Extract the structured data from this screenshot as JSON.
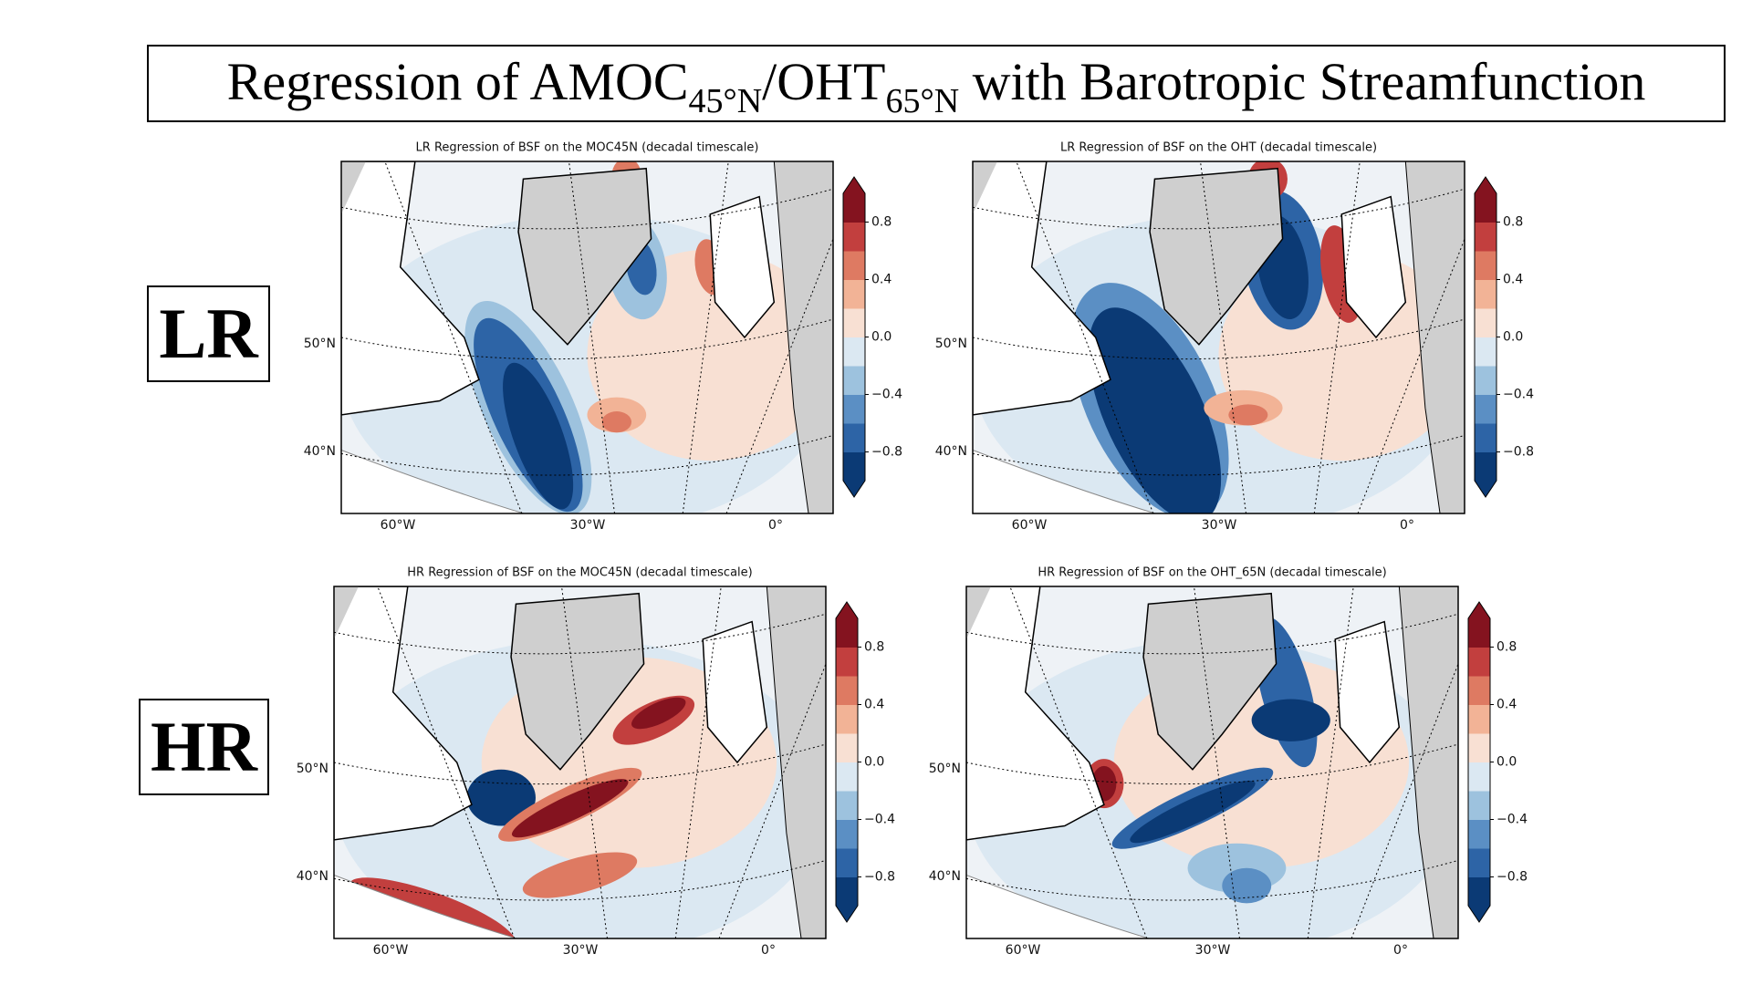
{
  "title": {
    "part_1": "Regression of AMOC",
    "sub_1": "45°N",
    "part_2": "/OHT",
    "sub_2": "65°N",
    "part_3": " with Barotropic Streamfunction"
  },
  "row_labels": [
    "LR",
    "HR"
  ],
  "panels": [
    {
      "title": "LR Regression of BSF on the MOC45N (decadal timescale)",
      "lat_labels": [
        "50°N",
        "40°N"
      ],
      "lon_labels": [
        "60°W",
        "30°W",
        "0°"
      ],
      "colorbar": {
        "clim": [
          -1,
          1
        ],
        "ticks": [
          0.8,
          0.4,
          {
            "value": 0,
            "label": "0.0"
          },
          {
            "value": -0.4,
            "label": "−0.4"
          },
          {
            "value": -0.8,
            "label": "−0.8"
          }
        ]
      }
    },
    {
      "title": "LR Regression of BSF on the OHT (decadal timescale)",
      "lat_labels": [
        "50°N",
        "40°N"
      ],
      "lon_labels": [
        "60°W",
        "30°W",
        "0°"
      ],
      "colorbar": {
        "clim": [
          -1,
          1
        ],
        "ticks": [
          0.8,
          0.4,
          {
            "value": 0,
            "label": "0.0"
          },
          {
            "value": -0.4,
            "label": "−0.4"
          },
          {
            "value": -0.8,
            "label": "−0.8"
          }
        ]
      }
    },
    {
      "title": "HR Regression of BSF on the MOC45N (decadal timescale)",
      "lat_labels": [
        "50°N",
        "40°N"
      ],
      "lon_labels": [
        "60°W",
        "30°W",
        "0°"
      ],
      "colorbar": {
        "clim": [
          -1,
          1
        ],
        "ticks": [
          0.8,
          0.4,
          {
            "value": 0,
            "label": "0.0"
          },
          {
            "value": -0.4,
            "label": "−0.4"
          },
          {
            "value": -0.8,
            "label": "−0.8"
          }
        ]
      }
    },
    {
      "title": "HR Regression of BSF on the OHT_65N (decadal timescale)",
      "lat_labels": [
        "50°N",
        "40°N"
      ],
      "lon_labels": [
        "60°W",
        "30°W",
        "0°"
      ],
      "colorbar": {
        "clim": [
          -1,
          1
        ],
        "ticks": [
          0.8,
          0.4,
          {
            "value": 0,
            "label": "0.0"
          },
          {
            "value": -0.4,
            "label": "−0.4"
          },
          {
            "value": -0.8,
            "label": "−0.8"
          }
        ]
      }
    }
  ]
}
